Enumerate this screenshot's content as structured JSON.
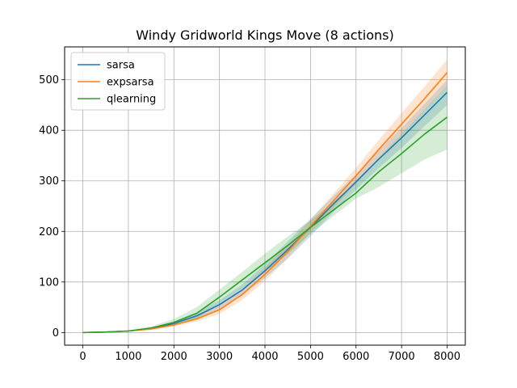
{
  "chart_data": {
    "type": "line",
    "title": "Windy Gridworld Kings Move (8 actions)",
    "xlabel": "",
    "ylabel": "",
    "xlim": [
      -400,
      8400
    ],
    "ylim": [
      -25,
      565
    ],
    "xticks": [
      0,
      1000,
      2000,
      3000,
      4000,
      5000,
      6000,
      7000,
      8000
    ],
    "yticks": [
      0,
      100,
      200,
      300,
      400,
      500
    ],
    "grid": true,
    "legend_position": "upper left",
    "x": [
      0,
      500,
      1000,
      1500,
      2000,
      2500,
      3000,
      3500,
      4000,
      4500,
      5000,
      5500,
      6000,
      6500,
      7000,
      7500,
      8000
    ],
    "series": [
      {
        "name": "sarsa",
        "color": "#1f77b4",
        "values": [
          0,
          1,
          3,
          8,
          18,
          33,
          55,
          84,
          122,
          164,
          208,
          254,
          298,
          343,
          385,
          430,
          475
        ],
        "lower": [
          0,
          0.5,
          2,
          6,
          14,
          27,
          47,
          74,
          108,
          146,
          190,
          238,
          283,
          325,
          365,
          408,
          450
        ],
        "upper": [
          0,
          1.5,
          4,
          10,
          22,
          40,
          64,
          95,
          135,
          180,
          225,
          270,
          313,
          360,
          405,
          452,
          500
        ]
      },
      {
        "name": "expsarsa",
        "color": "#ff7f0e",
        "values": [
          0,
          1,
          3,
          7,
          15,
          27,
          45,
          75,
          115,
          160,
          210,
          260,
          310,
          362,
          412,
          462,
          514
        ],
        "lower": [
          0,
          0.5,
          2,
          5,
          12,
          22,
          37,
          64,
          102,
          147,
          197,
          246,
          294,
          343,
          390,
          438,
          487
        ],
        "upper": [
          0,
          1.5,
          4,
          9,
          18,
          32,
          53,
          86,
          128,
          173,
          223,
          274,
          326,
          381,
          434,
          486,
          540
        ]
      },
      {
        "name": "qlearning",
        "color": "#2ca02c",
        "values": [
          0,
          1,
          3,
          9,
          20,
          38,
          70,
          104,
          138,
          172,
          208,
          242,
          276,
          318,
          354,
          392,
          426
        ],
        "lower": [
          0,
          0.5,
          2,
          6,
          14,
          28,
          55,
          87,
          120,
          155,
          195,
          230,
          265,
          288,
          315,
          342,
          362
        ],
        "upper": [
          0,
          1.5,
          4,
          12,
          27,
          50,
          85,
          120,
          156,
          190,
          222,
          258,
          297,
          345,
          392,
          440,
          488
        ]
      }
    ]
  }
}
